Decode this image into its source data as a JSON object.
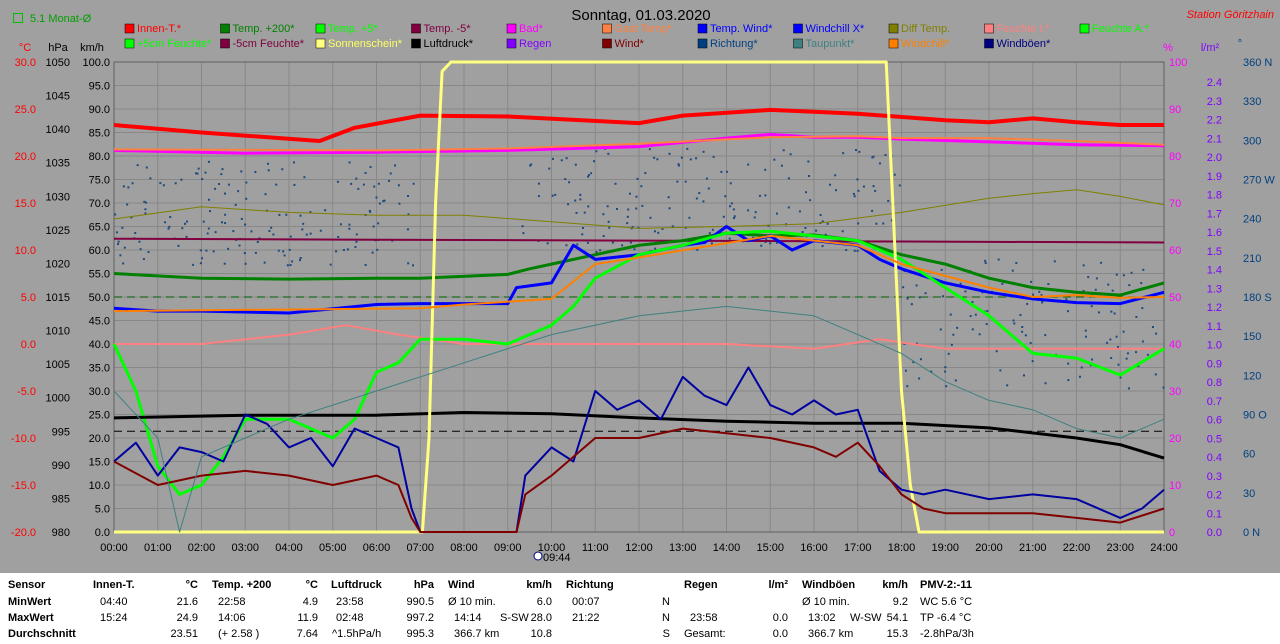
{
  "header": {
    "title": "Sonntag, 01.03.2020",
    "station": "Station Göritzhain",
    "selector": "5.1 Monat-Ø",
    "time_marker": "09:44"
  },
  "axes": {
    "units": {
      "temp": "°C",
      "pressure": "hPa",
      "speed": "km/h",
      "percent": "%",
      "rain": "l/m²",
      "dir": "°"
    },
    "temp_ticks": [
      "30.0",
      "25.0",
      "20.0",
      "15.0",
      "10.0",
      "5.0",
      "0.0",
      "-5.0",
      "-10.0",
      "-15.0",
      "-20.0"
    ],
    "pressure_ticks": [
      "1050",
      "1045",
      "1040",
      "1035",
      "1030",
      "1025",
      "1020",
      "1015",
      "1010",
      "1005",
      "1000",
      "995",
      "990",
      "985",
      "980"
    ],
    "speed_ticks": [
      "100.0",
      "95.0",
      "90.0",
      "85.0",
      "80.0",
      "75.0",
      "70.0",
      "65.0",
      "60.0",
      "55.0",
      "50.0",
      "45.0",
      "40.0",
      "35.0",
      "30.0",
      "25.0",
      "20.0",
      "15.0",
      "10.0",
      "5.0",
      "0.0"
    ],
    "percent_ticks": [
      "100",
      "90",
      "80",
      "70",
      "60",
      "50",
      "40",
      "30",
      "20",
      "10",
      "0"
    ],
    "rain_ticks": [
      "2.4",
      "2.3",
      "2.2",
      "2.1",
      "2.0",
      "1.9",
      "1.8",
      "1.7",
      "1.6",
      "1.5",
      "1.4",
      "1.3",
      "1.2",
      "1.1",
      "1.0",
      "0.9",
      "0.8",
      "0.7",
      "0.6",
      "0.5",
      "0.4",
      "0.3",
      "0.2",
      "0.1",
      "0.0"
    ],
    "dir_ticks": [
      "360 N",
      "330",
      "300",
      "270 W",
      "240",
      "210",
      "180 S",
      "150",
      "120",
      "90 O",
      "60",
      "30",
      "0   N"
    ],
    "x_ticks": [
      "00:00",
      "01:00",
      "02:00",
      "03:00",
      "04:00",
      "05:00",
      "06:00",
      "07:00",
      "08:00",
      "09:00",
      "10:00",
      "11:00",
      "12:00",
      "13:00",
      "14:00",
      "15:00",
      "16:00",
      "17:00",
      "18:00",
      "19:00",
      "20:00",
      "21:00",
      "22:00",
      "23:00",
      "24:00"
    ]
  },
  "legend": [
    {
      "label": "Innen-T.*",
      "color": "#ff0000"
    },
    {
      "label": "Temp. +200*",
      "color": "#008000"
    },
    {
      "label": "Temp. +5*",
      "color": "#00ff00"
    },
    {
      "label": "Temp. -5*",
      "color": "#800040"
    },
    {
      "label": "Bad*",
      "color": "#ff00ff"
    },
    {
      "label": "Gast Temp*",
      "color": "#ff8040"
    },
    {
      "label": "Temp. Wind*",
      "color": "#0000ff"
    },
    {
      "label": "Windchill X*",
      "color": "#0000ff"
    },
    {
      "label": "Diff Temp.",
      "color": "#808000"
    },
    {
      "label": "Feuchte I.*",
      "color": "#ff8080"
    },
    {
      "label": "Feuchte A.*",
      "color": "#00ff00"
    },
    {
      "label": "+5cm Feuchte*",
      "color": "#00ff00"
    },
    {
      "label": "-5cm Feuchte*",
      "color": "#800040"
    },
    {
      "label": "Sonnenschein*",
      "color": "#ffff80"
    },
    {
      "label": "Luftdruck*",
      "color": "#000000"
    },
    {
      "label": "Regen",
      "color": "#8000ff"
    },
    {
      "label": "Wind*",
      "color": "#800000"
    },
    {
      "label": "Richtung*",
      "color": "#004080"
    },
    {
      "label": "Taupunkt*",
      "color": "#408080"
    },
    {
      "label": "Windchill*",
      "color": "#ff8000"
    },
    {
      "label": "Windböen*",
      "color": "#000080"
    }
  ],
  "chart_data": {
    "type": "line",
    "title": "Sonntag, 01.03.2020",
    "x_unit": "hours",
    "xlim": [
      0,
      24
    ],
    "ylim_speed": [
      0,
      100
    ],
    "series": [
      {
        "name": "Innen-T.*",
        "unit": "°C",
        "color": "#ff0000",
        "width": 4,
        "x": [
          0,
          2,
          4.7,
          5.5,
          7,
          9,
          12,
          13,
          15,
          16,
          17,
          19,
          20,
          21,
          22,
          23,
          24
        ],
        "y": [
          23.3,
          22.5,
          21.6,
          23.0,
          24.3,
          24.2,
          23.5,
          24.3,
          24.9,
          24.7,
          24.5,
          23.8,
          23.6,
          24.0,
          23.6,
          23.3,
          23.3
        ]
      },
      {
        "name": "Bad*",
        "unit": "°C",
        "color": "#ff00ff",
        "width": 3,
        "x": [
          0,
          3,
          6,
          9,
          12,
          14,
          15,
          16,
          17,
          18,
          20,
          22,
          24
        ],
        "y": [
          20.6,
          20.3,
          20.4,
          20.6,
          21.0,
          21.9,
          22.3,
          22.0,
          22.0,
          21.8,
          21.5,
          21.2,
          21.1
        ]
      },
      {
        "name": "Gast Temp*",
        "unit": "°C",
        "color": "#ff8040",
        "width": 2,
        "x": [
          0,
          6,
          9,
          12,
          15,
          17,
          18,
          20,
          22,
          24
        ],
        "y": [
          20.7,
          20.6,
          20.8,
          21.3,
          22.0,
          22.1,
          21.9,
          21.9,
          21.6,
          21.2
        ]
      },
      {
        "name": "Feuchte I.*",
        "unit": "%",
        "color": "#ff8080",
        "width": 2,
        "x": [
          0,
          2,
          4,
          5.3,
          6.5,
          8,
          11,
          14,
          16,
          17.5,
          19,
          24
        ],
        "y": [
          40,
          40,
          42,
          44,
          42,
          40,
          40,
          40,
          39,
          41,
          39,
          39
        ]
      },
      {
        "name": "Temp. -5*",
        "unit": "°C",
        "color": "#800040",
        "width": 2,
        "x": [
          0,
          6,
          12,
          18,
          24
        ],
        "y": [
          11.2,
          11.1,
          11.0,
          10.9,
          10.8
        ]
      },
      {
        "name": "Diff Temp.",
        "unit": "°C",
        "color": "#808000",
        "width": 1,
        "x": [
          0,
          2,
          4,
          6,
          8,
          10,
          12,
          14,
          16,
          18,
          20,
          21,
          22,
          23,
          24
        ],
        "y": [
          13.3,
          14.6,
          14.0,
          13.7,
          13.7,
          13.0,
          12.3,
          12.5,
          12.8,
          14.0,
          15.5,
          16.0,
          16.4,
          15.7,
          14.8
        ]
      },
      {
        "name": "Temp. +200*",
        "unit": "°C",
        "color": "#008000",
        "width": 3,
        "x": [
          0,
          2,
          4,
          6,
          7,
          9,
          9.5,
          10,
          11,
          12,
          13,
          14,
          15,
          16,
          17,
          18,
          19,
          20,
          21,
          22,
          23,
          24
        ],
        "y": [
          7.5,
          7.0,
          6.9,
          7.0,
          7.0,
          7.4,
          8.0,
          8.5,
          9.5,
          10.5,
          11.0,
          11.8,
          11.5,
          11.6,
          11.0,
          9.5,
          8.5,
          7.0,
          6.0,
          5.5,
          5.2,
          6.5
        ]
      },
      {
        "name": "Temp. Wind*",
        "unit": "°C",
        "color": "#0000ff",
        "width": 3,
        "x": [
          0,
          1,
          2,
          4,
          6,
          7,
          9,
          9.2,
          10,
          10.5,
          11,
          12,
          13,
          13.5,
          14,
          14.5,
          15,
          15.5,
          16,
          17,
          17.5,
          18,
          19,
          20,
          21,
          22,
          23,
          24
        ],
        "y": [
          3.8,
          3.5,
          3.5,
          3.3,
          4.2,
          4.3,
          4.3,
          6.0,
          6.5,
          10.5,
          9.0,
          9.5,
          10.5,
          10.8,
          12.5,
          11.0,
          11.5,
          10.0,
          11.0,
          10.5,
          9.0,
          8.0,
          6.5,
          5.5,
          4.8,
          4.4,
          4.3,
          5.5
        ]
      },
      {
        "name": "Temp. +5*",
        "unit": "°C",
        "color": "#00ff00",
        "width": 3,
        "x": [
          0,
          0.5,
          1,
          1.5,
          2,
          2.5,
          3,
          4,
          5,
          5.5,
          6,
          6.5,
          7,
          8,
          9,
          9.5,
          10,
          10.5,
          11,
          12,
          13,
          14,
          15,
          16,
          17,
          18,
          19,
          20,
          21,
          22,
          23,
          24
        ],
        "y": [
          0.0,
          -5.0,
          -13.0,
          -16.0,
          -15.0,
          -12.0,
          -8.0,
          -8.0,
          -10.0,
          -8.0,
          -3.0,
          -2.0,
          0.5,
          0.5,
          0.0,
          1.0,
          2.0,
          4.0,
          7.0,
          9.5,
          10.5,
          11.8,
          12.0,
          11.5,
          11.0,
          9.0,
          6.0,
          3.0,
          -1.0,
          -1.5,
          -3.3,
          -0.5
        ]
      },
      {
        "name": "Luftdruck*",
        "unit": "hPa",
        "color": "#000000",
        "width": 3,
        "x": [
          0,
          3,
          6,
          8,
          10,
          12,
          14,
          16,
          18,
          20,
          22,
          23,
          24
        ],
        "y": [
          997.0,
          997.4,
          997.4,
          997.8,
          997.6,
          997.0,
          996.5,
          996.2,
          996.2,
          995.5,
          994.0,
          993.0,
          991.0
        ]
      },
      {
        "name": "Sonnenschein*",
        "unit": "%",
        "color": "#ffff80",
        "width": 3,
        "x": [
          0,
          7.05,
          7.2,
          7.35,
          7.5,
          7.7,
          8,
          9,
          12,
          15,
          17.65,
          17.8,
          18,
          18.2,
          18.4,
          24
        ],
        "y": [
          0,
          0,
          20,
          70,
          98,
          100,
          100,
          100,
          100,
          100,
          100,
          70,
          30,
          10,
          0,
          0
        ]
      },
      {
        "name": "Windböen*",
        "unit": "km/h",
        "color": "#0000a0",
        "width": 2,
        "x": [
          0,
          0.5,
          1,
          1.5,
          2,
          2.5,
          3,
          3.5,
          4,
          4.5,
          5,
          5.5,
          6,
          6.5,
          6.8,
          7.0,
          9.2,
          9.4,
          9.8,
          10,
          10.5,
          11,
          11.5,
          12,
          12.5,
          13,
          13.5,
          14,
          14.5,
          15,
          15.5,
          16,
          16.5,
          17,
          17.5,
          18,
          18.5,
          19,
          20,
          21,
          22,
          23,
          23.5,
          24
        ],
        "y": [
          15,
          19,
          12,
          18,
          17,
          15,
          25,
          23,
          18,
          20,
          14,
          22,
          20,
          18,
          5,
          0,
          0,
          12,
          16,
          18,
          15,
          30,
          26,
          28,
          24,
          33,
          29,
          27,
          35,
          27,
          25,
          28,
          25,
          26,
          13,
          9,
          8,
          9,
          7,
          8,
          7,
          3,
          5,
          9
        ]
      },
      {
        "name": "Wind*",
        "unit": "km/h",
        "color": "#800000",
        "width": 2,
        "x": [
          0,
          1,
          2,
          3,
          4,
          5,
          6,
          6.5,
          6.8,
          7.0,
          9.2,
          9.4,
          10,
          11,
          12,
          13,
          14,
          15,
          16,
          16.5,
          17,
          17.5,
          18,
          18.5,
          19,
          20,
          21,
          22,
          23,
          24
        ],
        "y": [
          15,
          10,
          12,
          13,
          12,
          10,
          12,
          10,
          3,
          0,
          0,
          8,
          12,
          20,
          20,
          22,
          21,
          20,
          18,
          16,
          19,
          14,
          8,
          5,
          4,
          4,
          4,
          3,
          2,
          5
        ]
      },
      {
        "name": "Taupunkt*",
        "unit": "°C",
        "color": "#408080",
        "width": 1,
        "x": [
          0,
          1,
          1.5,
          2,
          4,
          6,
          8,
          10,
          12,
          14,
          16,
          18,
          19,
          20,
          21,
          22,
          23,
          24
        ],
        "y": [
          -5.0,
          -10.0,
          -20.0,
          -12.0,
          -8.0,
          -5.0,
          -2.0,
          1.0,
          3.0,
          4.0,
          3.0,
          -1.0,
          -4.0,
          -6.0,
          -7.0,
          -9.0,
          -10.0,
          -8.0
        ]
      },
      {
        "name": "Windchill*",
        "unit": "°C",
        "color": "#ff8000",
        "width": 2,
        "x": [
          0,
          7,
          8,
          10,
          11,
          12,
          15,
          17,
          18,
          20,
          21,
          22,
          23,
          24
        ],
        "y": [
          3.5,
          3.8,
          4.2,
          4.8,
          8.5,
          9.2,
          11.5,
          10.5,
          8.5,
          6.0,
          5.0,
          5.2,
          4.9,
          5.0
        ]
      }
    ]
  },
  "stats": {
    "sensor": {
      "label": "Sensor",
      "rows": [
        "MinWert",
        "MaxWert",
        "Durchschnitt"
      ]
    },
    "innen": {
      "title": "Innen-T.",
      "unit": "°C",
      "min_time": "04:40",
      "min": "21.6",
      "max_time": "15:24",
      "max": "24.9",
      "avg": "23.51"
    },
    "temp200": {
      "title": "Temp. +200",
      "unit": "°C",
      "min_time": "22:58",
      "min": "4.9",
      "max_time": "14:06",
      "max": "11.9",
      "avg_extra": "(+ 2.58 )",
      "avg": "7.64"
    },
    "druck": {
      "title": "Luftdruck",
      "unit": "hPa",
      "min_time": "23:58",
      "min": "990.5",
      "max_time": "02:48",
      "max": "997.2",
      "avg_extra": "^1.5hPa/h",
      "avg": "995.3"
    },
    "wind": {
      "title": "Wind",
      "unit": "km/h",
      "r1a": "Ø 10 min.",
      "r1b": "6.0",
      "r2a": "14:14",
      "r2m": "S-SW",
      "r2b": "28.0",
      "r3a": "366.7 km",
      "r3b": "10.8"
    },
    "richtung": {
      "title": "Richtung",
      "r1a": "00:07",
      "r1b": "N",
      "r2a": "21:22",
      "r2b": "N",
      "r3b": "S"
    },
    "regen": {
      "title": "Regen",
      "unit": "l/m²",
      "r2a": "23:58",
      "r2b": "0.0",
      "r3a": "Gesamt:",
      "r3b": "0.0"
    },
    "boeen": {
      "title": "Windböen",
      "unit": "km/h",
      "r1a": "Ø 10 min.",
      "r1b": "9.2",
      "r2a": "13:02",
      "r2m": "W-SW",
      "r2b": "54.1",
      "r3a": "366.7 km",
      "r3b": "15.3"
    },
    "pmv": {
      "title": "PMV-2:-11",
      "r1": "WC 5.6 °C",
      "r2": "TP -6.4 °C",
      "r3": "-2.8hPa/3h"
    }
  }
}
